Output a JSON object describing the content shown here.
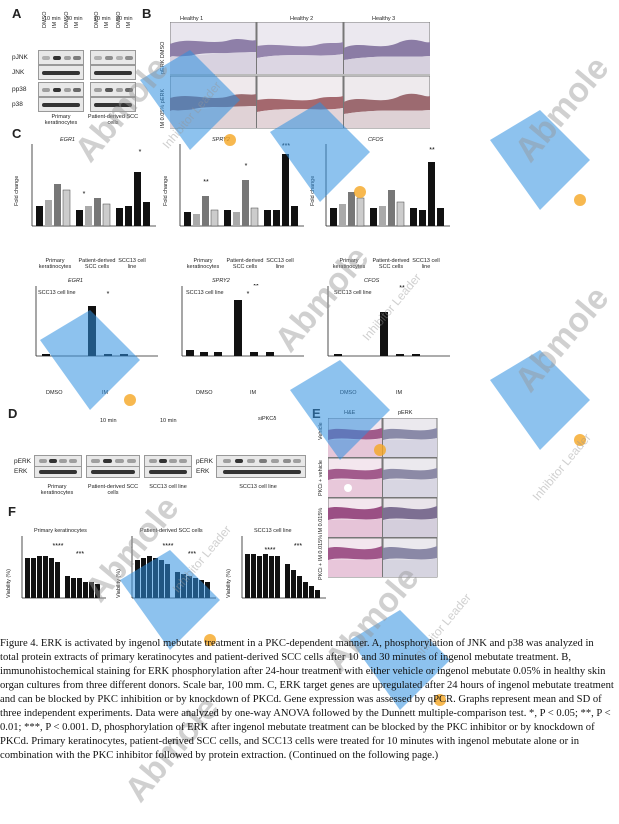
{
  "panels": {
    "A": {
      "label": "A",
      "times": [
        "10 min",
        "30 min",
        "10 min",
        "30 min"
      ],
      "lanes": [
        "DMSO",
        "IM",
        "DMSO",
        "IM",
        "DMSO",
        "IM",
        "DMSO",
        "IM"
      ],
      "rows": [
        "pJNK",
        "JNK",
        "pp38",
        "p38"
      ],
      "groups": [
        "Primary keratinocytes",
        "Patient-derived SCC cells"
      ]
    },
    "B": {
      "label": "B",
      "columns": [
        "Healthy 1",
        "Healthy 2",
        "Healthy 3"
      ],
      "rows": [
        "pERK DMSO",
        "IM 0.05% pERK"
      ]
    },
    "C": {
      "label": "C",
      "ylabel": "Fold change",
      "titles": [
        "EGR1",
        "SPRY2",
        "CFOS"
      ],
      "xlabels": [
        "DMSO",
        "PKCi",
        "IM",
        "PKCi+IM"
      ],
      "groups": [
        "Primary keratinocytes",
        "Patient-derived SCC cells",
        "SCC13 cell line"
      ],
      "bottom_titles": [
        "EGR1",
        "SPRY2",
        "CFOS"
      ],
      "bottom_sub": "SCC13 cell line",
      "bottom_xlabels": [
        "siCtrl",
        "siPKCδ #1",
        "siPKCδ #11",
        "siCtrl",
        "siPKCδ #1",
        "siPKCδ #11"
      ],
      "bottom_groups": [
        "DMSO",
        "IM"
      ],
      "stars": [
        "*",
        "**",
        "*",
        "***",
        "**",
        "*",
        "**",
        "*"
      ]
    },
    "D": {
      "label": "D",
      "time": "10 min",
      "lanes": [
        "DMSO",
        "IM",
        "PKCi",
        "IM+PKCi"
      ],
      "rows": [
        "pERK",
        "ERK"
      ],
      "groups": [
        "Primary keratinocytes",
        "Patient-derived SCC cells",
        "SCC13 cell line",
        "SCC13 cell line"
      ],
      "si_header": "siPKCδ",
      "si_lanes": [
        "siCtrl",
        "#1",
        "#7",
        "#11"
      ]
    },
    "E": {
      "label": "E",
      "columns": [
        "H&E",
        "pERK"
      ],
      "rows": [
        "Vehicle",
        "PKCi + vehicle",
        "IM 0.015%",
        "PKCi + IM 0.015%"
      ]
    },
    "F": {
      "label": "F",
      "ylabel": "Viability (%)",
      "titles": [
        "Primary keratinocytes",
        "Patient-derived SCC cells",
        "SCC13 cell line"
      ],
      "stars": [
        "****",
        "***",
        "****",
        "***",
        "****",
        "***"
      ]
    }
  },
  "caption": "Figure 4. ERK is activated by ingenol mebutate treatment in a PKC-dependent manner. A, phosphorylation of JNK and p38 was analyzed in total protein extracts of primary keratinocytes and patient-derived SCC cells after 10 and 30 minutes of ingenol mebutate treatment. B, immunohistochemical staining for ERK phosphorylation after 24-hour treatment with either vehicle or ingenol mebutate 0.05% in healthy skin organ cultures from three different donors. Scale bar, 100 mm. C, ERK target genes are upregulated after 24 hours of ingenol mebutate treatment and can be blocked by PKC inhibition or by knockdown of PKCd. Gene expression was assessed by qPCR. Graphs represent mean and SD of three independent experiments. Data were analyzed by one-way ANOVA followed by the Dunnett multiple-comparison test. *, P < 0.05; **, P < 0.01; ***, P < 0.001. D, phosphorylation of ERK after ingenol mebutate treatment can be blocked by the PKC inhibitor or by knockdown of PKCd. Primary keratinocytes, patient-derived SCC cells, and SCC13 cells were treated for 10 minutes with ingenol mebutate alone or in combination with the PKC inhibitor followed by protein extraction. (Continued on the following page.)",
  "watermark": {
    "brand": "Abmole",
    "tagline": "Inhibitor Leader"
  },
  "colors": {
    "watermark_blue": "#2f8fe0",
    "watermark_orange": "#f5a623",
    "bar_black": "#111111",
    "bar_grey": "#9a9a9a"
  }
}
